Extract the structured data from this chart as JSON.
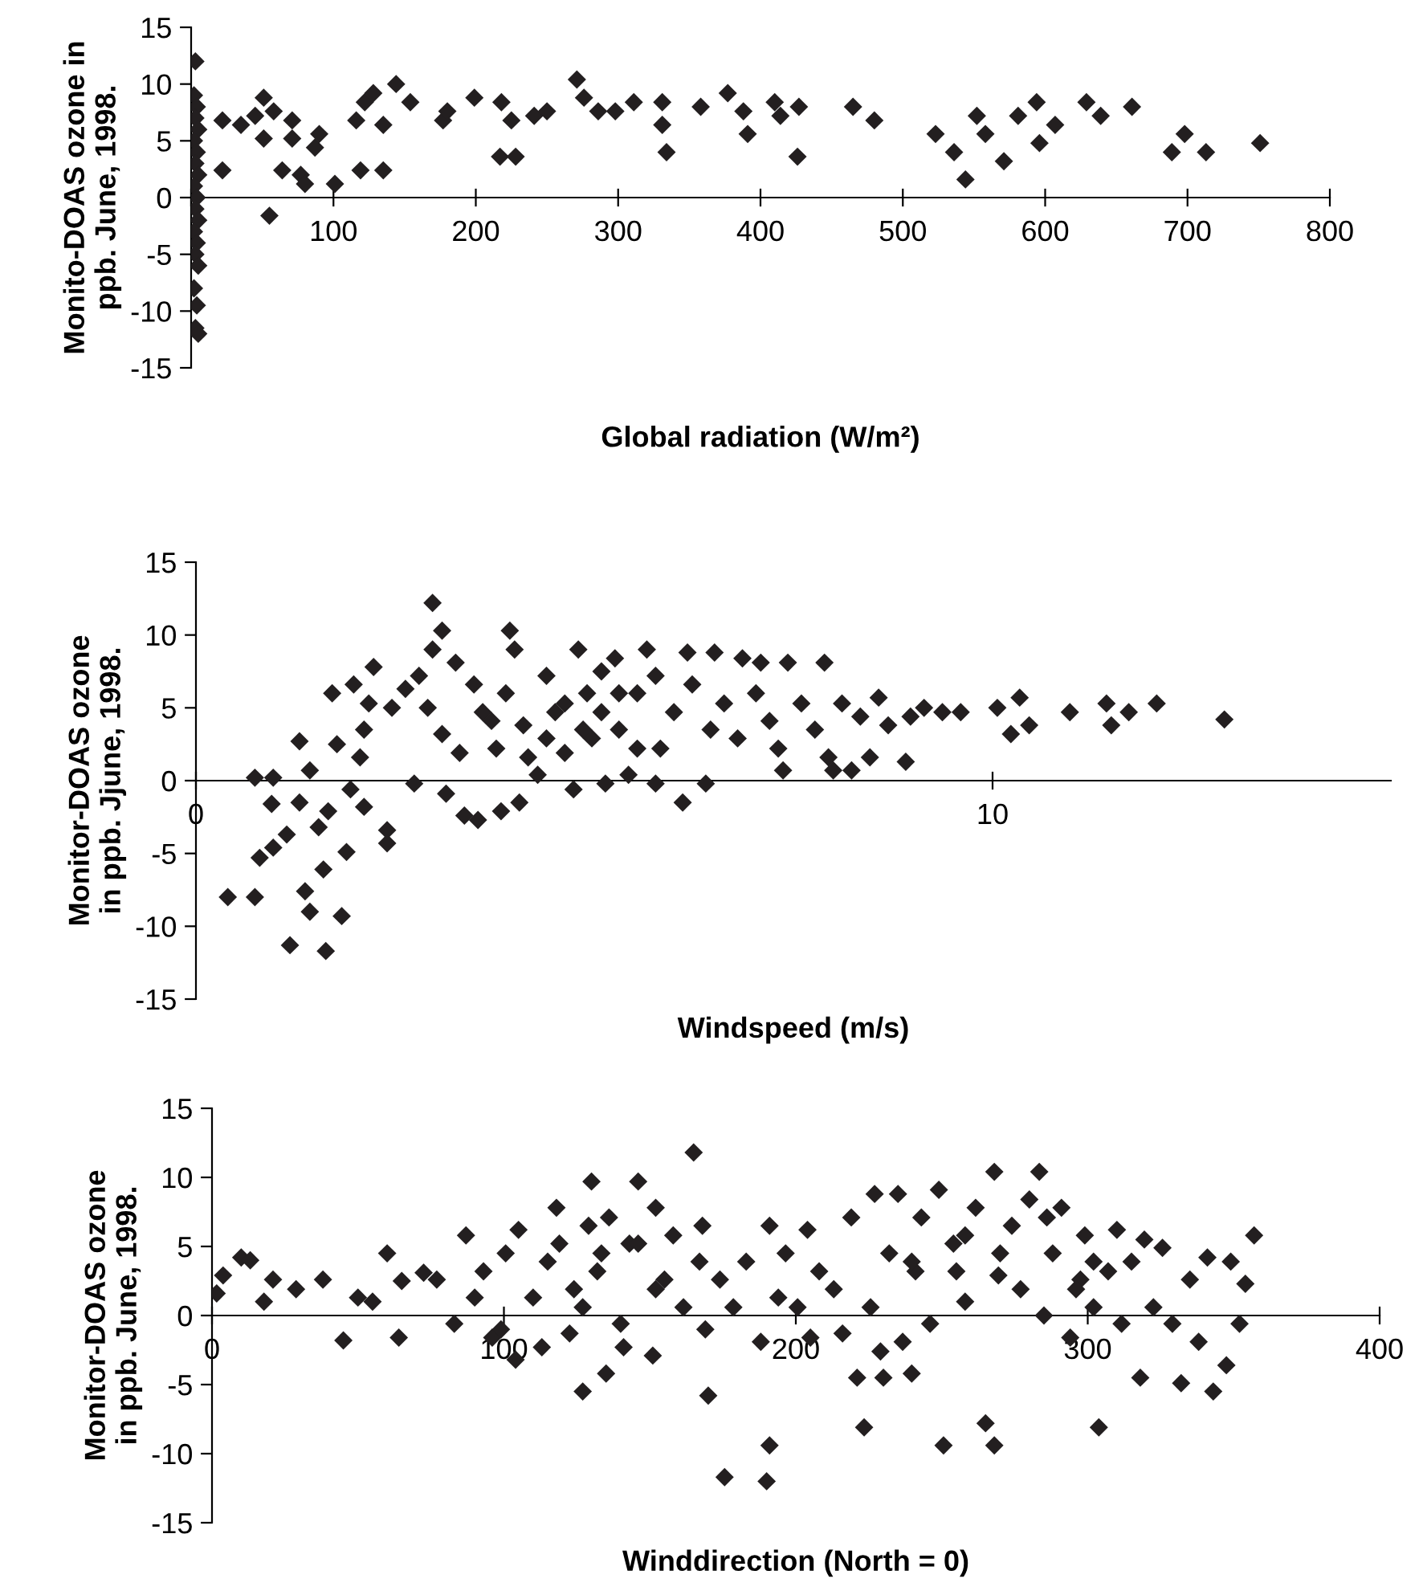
{
  "chart_data": [
    {
      "type": "scatter",
      "xlabel": "Global radiation (W/m²)",
      "ylabel": "Monito-DOAS ozone in\nppb. June, 1998.",
      "xlim": [
        0,
        800
      ],
      "xticks": [
        {
          "value": 0,
          "label": null
        },
        100,
        200,
        300,
        400,
        500,
        600,
        700,
        800
      ],
      "ylim": [
        -15,
        15
      ],
      "yticks": [
        -15,
        -10,
        -5,
        0,
        5,
        10,
        15
      ],
      "grid": false,
      "marker": "diamond",
      "series": [
        {
          "color": "#231f20",
          "x": [
            3,
            2,
            4,
            3,
            5,
            2,
            4,
            3,
            5,
            2,
            4,
            3,
            5,
            2,
            4,
            3,
            5,
            2,
            4,
            3,
            5,
            22,
            22,
            35,
            45,
            51,
            58,
            55,
            51,
            64,
            71,
            71,
            77,
            80,
            87,
            90,
            101,
            116,
            119,
            122,
            128,
            135,
            135,
            144,
            154,
            177,
            180,
            199,
            218,
            217,
            228,
            225,
            241,
            250,
            271,
            276,
            286,
            298,
            311,
            331,
            331,
            334,
            358,
            377,
            388,
            391,
            410,
            414,
            427,
            426,
            465,
            480,
            523,
            536,
            544,
            552,
            558,
            571,
            581,
            594,
            596,
            607,
            629,
            639,
            661,
            689,
            698,
            713,
            751
          ],
          "values": [
            12,
            9,
            8,
            7,
            6,
            5,
            4,
            3,
            2,
            1,
            0,
            -1,
            -2,
            -3,
            -4,
            -5,
            -6,
            -8,
            -9.5,
            -11.5,
            -12,
            6.8,
            2.4,
            6.4,
            7.2,
            5.2,
            7.6,
            -1.6,
            8.8,
            2.4,
            6.8,
            5.2,
            2,
            1.2,
            4.4,
            5.6,
            1.2,
            6.8,
            2.4,
            8.4,
            9.2,
            2.4,
            6.4,
            10,
            8.4,
            6.8,
            7.6,
            8.8,
            8.4,
            3.6,
            3.6,
            6.8,
            7.2,
            7.6,
            10.4,
            8.8,
            7.6,
            7.6,
            8.4,
            8.4,
            6.4,
            4,
            8,
            9.2,
            7.6,
            5.6,
            8.4,
            7.2,
            8,
            3.6,
            8,
            6.8,
            5.6,
            4,
            1.6,
            7.2,
            5.6,
            3.2,
            7.2,
            8.4,
            4.8,
            6.4,
            8.4,
            7.2,
            8,
            4,
            5.6,
            4,
            4.8
          ]
        }
      ]
    },
    {
      "type": "scatter",
      "xlabel": "Windspeed (m/s)",
      "ylabel": "Monitor-DOAS ozone\nin ppb. Jjune, 1998.",
      "xlim": [
        0,
        15
      ],
      "xticks": [
        0,
        10
      ],
      "ylim": [
        -15,
        15
      ],
      "yticks": [
        -15,
        -10,
        -5,
        0,
        5,
        10,
        15
      ],
      "grid": false,
      "marker": "diamond",
      "series": [
        {
          "color": "#231f20",
          "x": [
            0.4,
            0.74,
            0.8,
            0.74,
            0.97,
            0.95,
            0.97,
            1.14,
            1.3,
            1.3,
            1.43,
            1.18,
            1.37,
            1.43,
            1.63,
            1.6,
            1.54,
            1.66,
            1.71,
            1.77,
            1.83,
            1.89,
            1.94,
            1.98,
            2.06,
            2.11,
            2.23,
            2.17,
            2.11,
            2.4,
            2.4,
            2.46,
            2.63,
            2.74,
            2.8,
            2.91,
            2.97,
            3.09,
            2.97,
            3.09,
            3.14,
            3.26,
            3.31,
            3.37,
            3.54,
            3.49,
            3.6,
            3.77,
            3.83,
            3.89,
            3.94,
            4,
            4.06,
            4.11,
            4.29,
            4.4,
            4.51,
            4.63,
            4.74,
            4.8,
            4.91,
            4.97,
            5.09,
            5.14,
            5.26,
            5.31,
            5.43,
            5.54,
            5.66,
            5.77,
            5.77,
            5.83,
            6,
            6.11,
            6.17,
            6.23,
            6.4,
            6.46,
            6.51,
            6.63,
            6.8,
            6.86,
            7.03,
            7.09,
            7.2,
            7.31,
            7.37,
            7.43,
            7.6,
            7.77,
            7.89,
            7.94,
            8,
            8.11,
            8.23,
            8.34,
            8.46,
            8.57,
            8.69,
            8.91,
            8.97,
            9.14,
            9.37,
            9.6,
            10.06,
            10.23,
            10.34,
            10.46,
            10.97,
            11.43,
            11.49,
            11.71,
            12.06,
            12.91,
            4.4,
            4.63,
            4.86,
            5.09,
            4.17,
            5.54,
            3.71,
            5.31
          ],
          "values": [
            -8,
            -8,
            -5.3,
            0.2,
            0.2,
            -1.6,
            -4.6,
            -3.7,
            2.7,
            -1.5,
            0.7,
            -11.3,
            -7.6,
            -9,
            -11.7,
            -6.1,
            -3.2,
            -2.1,
            6,
            2.5,
            -9.3,
            -4.9,
            -0.6,
            6.6,
            1.6,
            3.5,
            7.8,
            5.3,
            -1.8,
            -3.4,
            -4.3,
            5,
            6.3,
            -0.2,
            7.2,
            5,
            12.2,
            10.3,
            9,
            3.2,
            -0.9,
            8.1,
            1.9,
            -2.4,
            -2.7,
            6.6,
            4.7,
            2.2,
            -2.1,
            6,
            10.3,
            9,
            -1.5,
            3.8,
            0.4,
            7.2,
            4.7,
            1.9,
            -0.6,
            9,
            6,
            2.9,
            7.5,
            -0.2,
            8.4,
            3.5,
            0.4,
            6,
            9,
            7.2,
            -0.2,
            2.2,
            4.7,
            -1.5,
            8.8,
            6.6,
            -0.2,
            3.5,
            8.8,
            5.3,
            2.9,
            8.4,
            6,
            8.1,
            4.1,
            2.2,
            0.7,
            8.1,
            5.3,
            3.5,
            8.1,
            1.6,
            0.7,
            5.3,
            0.7,
            4.4,
            1.6,
            5.7,
            3.8,
            1.3,
            4.4,
            5,
            4.7,
            4.7,
            5,
            3.2,
            5.7,
            3.8,
            4.7,
            5.3,
            3.8,
            4.7,
            5.3,
            4.2,
            2.9,
            5.3,
            3.5,
            4.7,
            1.6,
            2.2,
            4.1,
            6
          ]
        }
      ]
    },
    {
      "type": "scatter",
      "xlabel": "Winddirection (North = 0)",
      "ylabel": "Monitor-DOAS ozone\nin ppb. June, 1998.",
      "xlim": [
        0,
        400
      ],
      "xticks": [
        0,
        100,
        200,
        300,
        400
      ],
      "ylim": [
        -15,
        15
      ],
      "yticks": [
        -15,
        -10,
        -5,
        0,
        5,
        10,
        15
      ],
      "grid": false,
      "marker": "diamond",
      "series": [
        {
          "color": "#231f20",
          "x": [
            1.6,
            3.8,
            10,
            13.1,
            17.8,
            20.9,
            28.8,
            38,
            45,
            50,
            55,
            60,
            64,
            65,
            72.5,
            77,
            83,
            87,
            90,
            93,
            96,
            99,
            100.6,
            104,
            105,
            110,
            113,
            115,
            118,
            119,
            122.5,
            124,
            127,
            129,
            130,
            132,
            135,
            136,
            140,
            141,
            143,
            146,
            151,
            152,
            155,
            158,
            161.5,
            165,
            167,
            168,
            169,
            170,
            174,
            175.6,
            178.6,
            183,
            188,
            190,
            191,
            191,
            194,
            196.5,
            200.6,
            204,
            205,
            208,
            213,
            216,
            219,
            221,
            223.4,
            225.6,
            227,
            229,
            230,
            232,
            235,
            236.6,
            239.7,
            241,
            243,
            246,
            249,
            250.6,
            254,
            258,
            261.6,
            265,
            268,
            268,
            269.4,
            274,
            277,
            280,
            283.4,
            285,
            288,
            291,
            294,
            297.5,
            299,
            302,
            303.8,
            307,
            310,
            311.6,
            315,
            318,
            319.4,
            322.5,
            325.6,
            329,
            332,
            335,
            338,
            341,
            343,
            347.5,
            349,
            352,
            354,
            357,
            239.7,
            255,
            270,
            286,
            302,
            296,
            258,
            133.4,
            146,
            152,
            127
          ],
          "values": [
            1.6,
            2.9,
            4.2,
            4,
            1,
            2.6,
            1.9,
            2.6,
            -1.8,
            1.3,
            1,
            4.5,
            -1.6,
            2.5,
            3.1,
            2.6,
            -0.6,
            5.8,
            1.3,
            3.2,
            -1.6,
            -1,
            4.5,
            -3.2,
            6.2,
            1.3,
            -2.3,
            3.9,
            7.8,
            5.2,
            -1.3,
            1.9,
            -5.5,
            6.5,
            9.7,
            3.2,
            -4.2,
            7.1,
            -0.6,
            -2.3,
            5.2,
            9.7,
            -2.9,
            7.8,
            2.6,
            5.8,
            0.6,
            11.8,
            3.9,
            6.5,
            -1,
            -5.8,
            2.6,
            -11.7,
            0.6,
            3.9,
            -1.9,
            -12,
            -9.4,
            6.5,
            1.3,
            4.5,
            0.6,
            6.2,
            -1.6,
            3.2,
            1.9,
            -1.3,
            7.1,
            -4.5,
            -8.1,
            0.6,
            8.8,
            -2.6,
            -4.5,
            4.5,
            8.8,
            -1.9,
            -4.2,
            3.2,
            7.1,
            -0.6,
            9.1,
            -9.4,
            5.2,
            1,
            7.8,
            -7.8,
            10.4,
            -9.4,
            2.9,
            6.5,
            1.9,
            8.4,
            10.4,
            0,
            4.5,
            7.8,
            -1.6,
            2.6,
            5.8,
            0.6,
            -8.1,
            3.2,
            6.2,
            -0.6,
            3.9,
            -4.5,
            5.5,
            0.6,
            4.9,
            -0.6,
            -4.9,
            2.6,
            -1.9,
            4.2,
            -5.5,
            -3.6,
            3.9,
            -0.6,
            2.3,
            5.8,
            3.9,
            3.2,
            4.5,
            7.1,
            3.9,
            1.9,
            5.8,
            4.5,
            5.2,
            1.9,
            0.6
          ]
        }
      ]
    }
  ]
}
